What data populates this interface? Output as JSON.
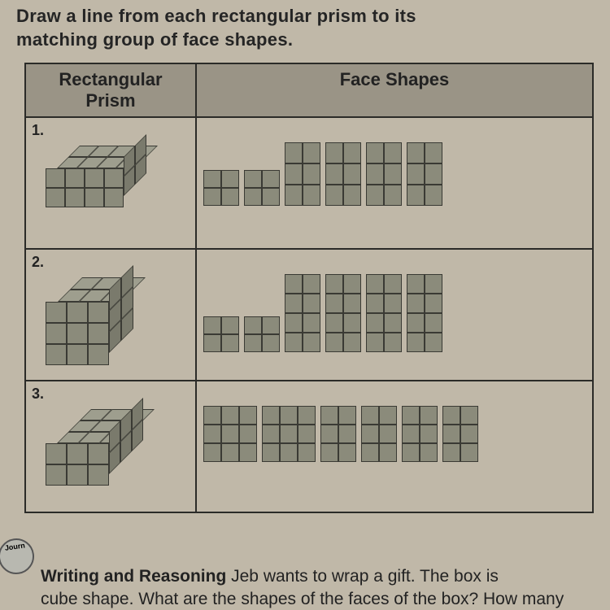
{
  "instructions": {
    "line1": "Draw a line from each rectangular prism to its",
    "line2": "matching group of face shapes."
  },
  "headers": {
    "left_line1": "Rectangular",
    "left_line2": "Prism",
    "right": "Face Shapes"
  },
  "rows": [
    {
      "num": "1.",
      "prism": {
        "w": 4,
        "h": 2,
        "d": 2,
        "unit": 24,
        "depth_unit": 14
      },
      "faces": [
        {
          "cols": 2,
          "rows": 2,
          "cw": 22,
          "ch": 22
        },
        {
          "cols": 2,
          "rows": 2,
          "cw": 22,
          "ch": 22
        },
        {
          "cols": 2,
          "rows": 3,
          "cw": 22,
          "ch": 26
        },
        {
          "cols": 2,
          "rows": 3,
          "cw": 22,
          "ch": 26
        },
        {
          "cols": 2,
          "rows": 3,
          "cw": 22,
          "ch": 26
        },
        {
          "cols": 2,
          "rows": 3,
          "cw": 22,
          "ch": 26
        }
      ]
    },
    {
      "num": "2.",
      "prism": {
        "w": 3,
        "h": 3,
        "d": 2,
        "unit": 26,
        "depth_unit": 15
      },
      "faces": [
        {
          "cols": 2,
          "rows": 2,
          "cw": 22,
          "ch": 22
        },
        {
          "cols": 2,
          "rows": 2,
          "cw": 22,
          "ch": 22
        },
        {
          "cols": 2,
          "rows": 4,
          "cw": 22,
          "ch": 24
        },
        {
          "cols": 2,
          "rows": 4,
          "cw": 22,
          "ch": 24
        },
        {
          "cols": 2,
          "rows": 4,
          "cw": 22,
          "ch": 24
        },
        {
          "cols": 2,
          "rows": 4,
          "cw": 22,
          "ch": 24
        }
      ]
    },
    {
      "num": "3.",
      "prism": {
        "w": 3,
        "h": 2,
        "d": 3,
        "unit": 26,
        "depth_unit": 14
      },
      "faces": [
        {
          "cols": 3,
          "rows": 3,
          "cw": 22,
          "ch": 23
        },
        {
          "cols": 3,
          "rows": 3,
          "cw": 22,
          "ch": 23
        },
        {
          "cols": 2,
          "rows": 3,
          "cw": 22,
          "ch": 23
        },
        {
          "cols": 2,
          "rows": 3,
          "cw": 22,
          "ch": 23
        },
        {
          "cols": 2,
          "rows": 3,
          "cw": 22,
          "ch": 23
        },
        {
          "cols": 2,
          "rows": 3,
          "cw": 22,
          "ch": 23
        }
      ]
    }
  ],
  "footer": {
    "badge": "Journ",
    "bold": "Writing and Reasoning",
    "text1": " Jeb wants to wrap a gift. The box is",
    "text2": "cube shape. What are the shapes of the faces of the box? How many"
  },
  "colors": {
    "page_bg": "#c0b8a8",
    "header_bg": "#9a9486",
    "shape_fill": "#8b8b7b",
    "shape_border": "#3a3a34",
    "text": "#252525"
  }
}
